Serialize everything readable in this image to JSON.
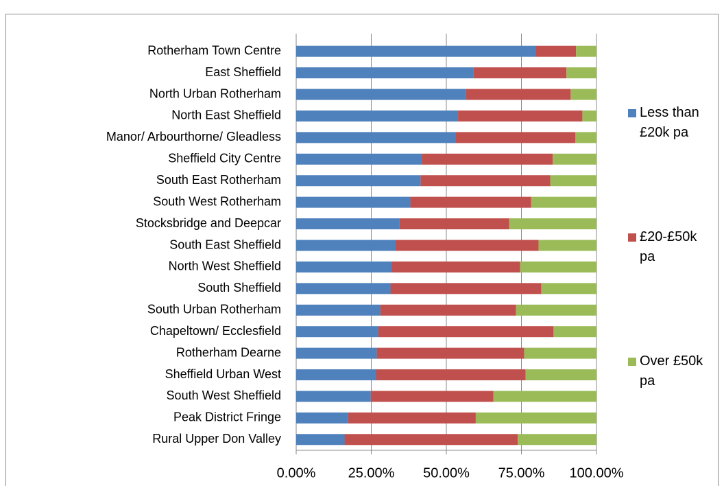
{
  "chart_data": {
    "type": "bar",
    "orientation": "horizontal",
    "stacked": true,
    "categories": [
      "Rotherham Town Centre",
      "East Sheffield",
      "North Urban Rotherham",
      "North East Sheffield",
      "Manor/ Arbourthorne/ Gleadless",
      "Sheffield City Centre",
      "South East Rotherham",
      "South West Rotherham",
      "Stocksbridge and Deepcar",
      "South East Sheffield",
      "North West Sheffield",
      "South Sheffield",
      "South Urban Rotherham",
      "Chapeltown/ Ecclesfield",
      "Rotherham Dearne",
      "Sheffield Urban West",
      "South West Sheffield",
      "Peak District Fringe",
      "Rural Upper Don Valley"
    ],
    "series": [
      {
        "name": "Less than £20k pa",
        "color": "#4f81bd",
        "values": [
          79.8,
          59.1,
          56.6,
          53.9,
          53.2,
          41.8,
          41.4,
          38.0,
          34.3,
          33.0,
          31.6,
          31.4,
          28.0,
          27.3,
          26.8,
          26.6,
          24.8,
          17.3,
          16.1
        ]
      },
      {
        "name": "£20-£50k pa",
        "color": "#c0504d",
        "values": [
          13.4,
          30.9,
          34.8,
          41.4,
          39.8,
          43.6,
          43.2,
          40.2,
          36.6,
          47.7,
          43.0,
          50.2,
          45.2,
          58.4,
          49.1,
          49.8,
          40.9,
          42.5,
          57.7
        ]
      },
      {
        "name": "Over £50k pa",
        "color": "#9bbb59",
        "values": [
          6.8,
          10.0,
          8.6,
          4.7,
          7.0,
          14.6,
          15.4,
          21.8,
          29.1,
          19.3,
          25.4,
          18.4,
          26.8,
          14.3,
          24.1,
          23.6,
          34.3,
          40.2,
          26.2
        ]
      }
    ],
    "xlim": [
      0,
      100
    ],
    "xticks": [
      {
        "value": 0,
        "label": "0.00%"
      },
      {
        "value": 25,
        "label": "25.00%"
      },
      {
        "value": 50,
        "label": "50.00%"
      },
      {
        "value": 75,
        "label": "75.00%"
      },
      {
        "value": 100,
        "label": "100.00%"
      }
    ],
    "grid": true,
    "legend": "right"
  }
}
